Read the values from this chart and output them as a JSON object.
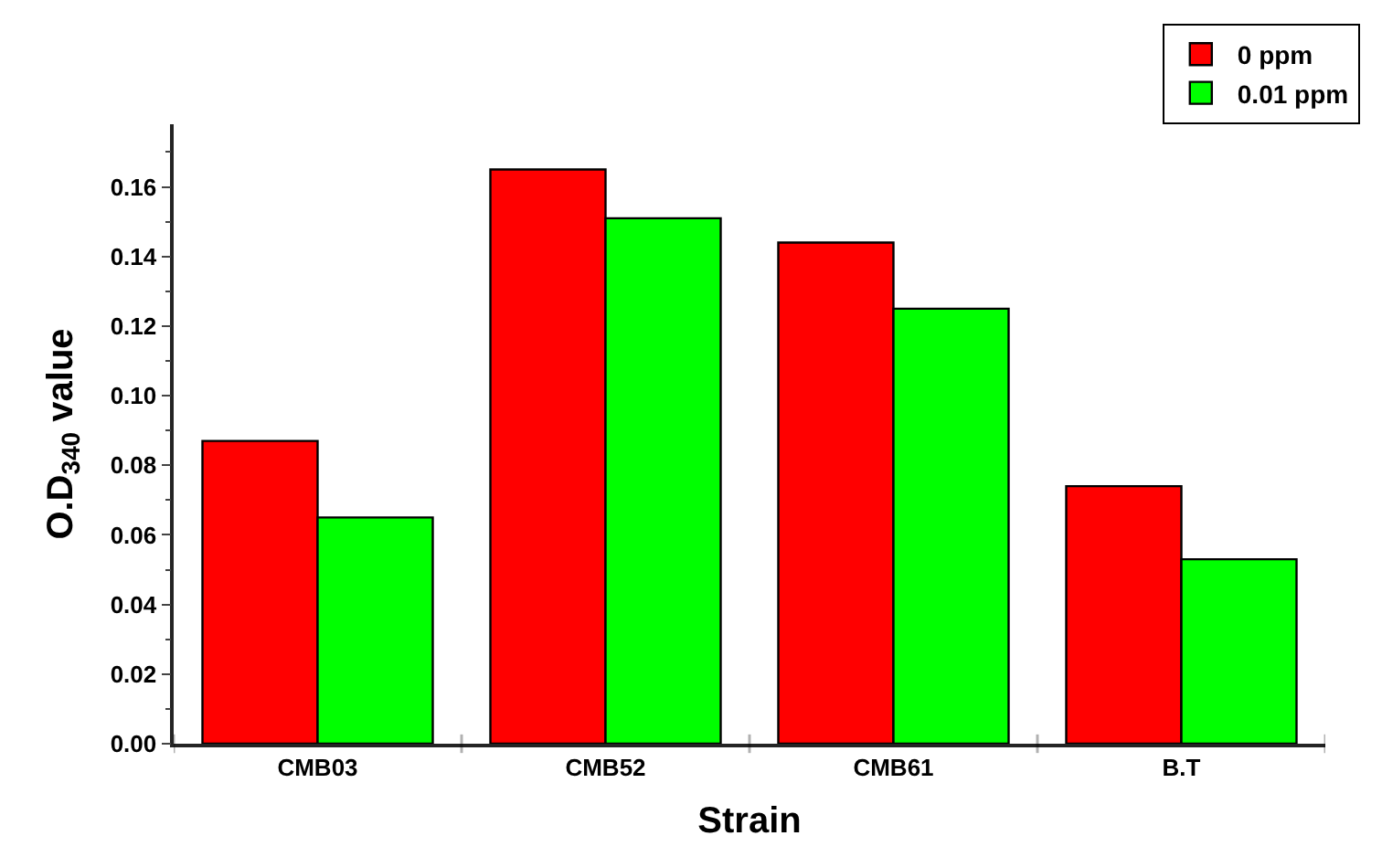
{
  "chart_data": {
    "type": "bar",
    "xlabel": "Strain",
    "ylabel": "O.D$_{340}$ value",
    "categories": [
      "CMB03",
      "CMB52",
      "CMB61",
      "B.T"
    ],
    "series": [
      {
        "name": "0 ppm",
        "color": "#ff0000",
        "values": [
          0.087,
          0.165,
          0.144,
          0.074
        ]
      },
      {
        "name": "0.01 ppm",
        "color": "#00ff00",
        "values": [
          0.065,
          0.151,
          0.125,
          0.053
        ]
      }
    ],
    "ylim": [
      0,
      0.178
    ],
    "yticks": [
      {
        "value": 0,
        "label": "0.00"
      },
      0.02,
      0.04,
      0.06,
      0.08,
      {
        "value": 0.1,
        "label": "0.10"
      },
      0.12,
      0.14,
      0.16
    ],
    "grid": false,
    "legend": "top right"
  }
}
